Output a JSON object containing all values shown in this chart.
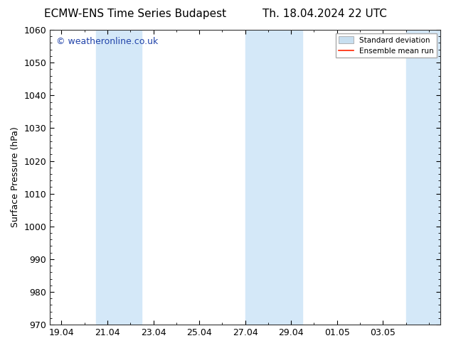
{
  "title_left": "ECMW-ENS Time Series Budapest",
  "title_right": "Th. 18.04.2024 22 UTC",
  "ylabel": "Surface Pressure (hPa)",
  "ylim": [
    970,
    1060
  ],
  "ytick_step": 10,
  "background_color": "#ffffff",
  "plot_bg_color": "#ffffff",
  "watermark": "© weatheronline.co.uk",
  "watermark_color": "#2244aa",
  "shade_color": "#d4e8f8",
  "shade_regions": [
    [
      20.5,
      21.5
    ],
    [
      21.5,
      22.5
    ],
    [
      27.0,
      28.0
    ],
    [
      28.0,
      29.5
    ],
    [
      34.0,
      35.5
    ]
  ],
  "x_tick_labels": [
    "19.04",
    "21.04",
    "23.04",
    "25.04",
    "27.04",
    "29.04",
    "01.05",
    "03.05"
  ],
  "x_tick_values": [
    19,
    21,
    23,
    25,
    27,
    29,
    31,
    33
  ],
  "xlim": [
    18.5,
    35.5
  ],
  "legend_items": [
    "Standard deviation",
    "Ensemble mean run"
  ],
  "legend_patch_color": "#c8dff0",
  "legend_line_color": "#ff2200",
  "title_fontsize": 11,
  "axis_fontsize": 9,
  "label_fontsize": 9,
  "watermark_fontsize": 9
}
